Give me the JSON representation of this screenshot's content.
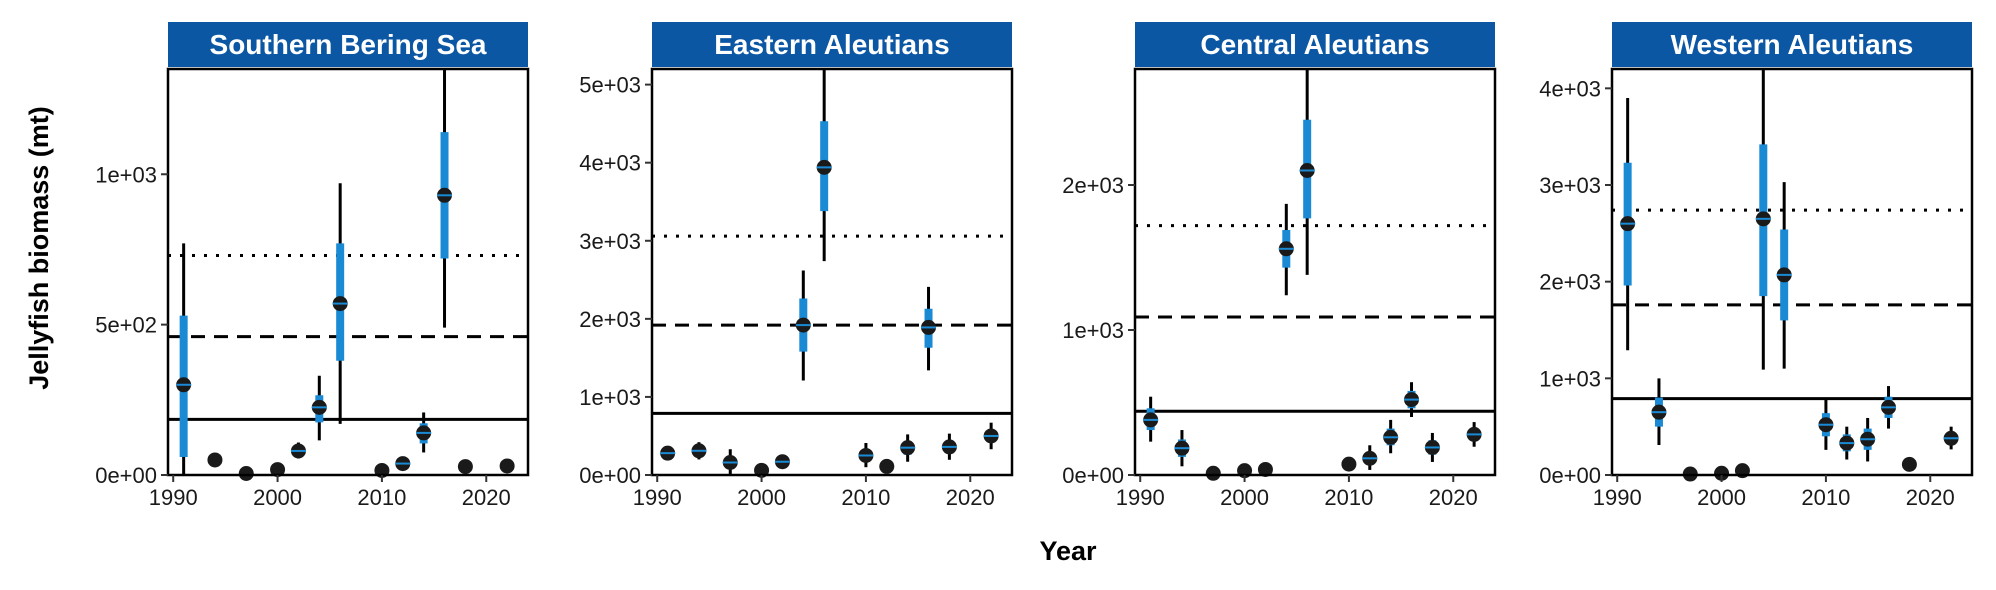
{
  "chart_data": {
    "type": "scatter",
    "ylabel": "Jellyfish biomass (mt)",
    "xlabel": "Year",
    "x_ticks": [
      "1990",
      "2000",
      "2010",
      "2020"
    ],
    "legend": "none",
    "strip_color": "#0b57a4",
    "ci_inner_color": "#1a8ad4",
    "panels": [
      {
        "title": "Southern Bering Sea",
        "ylim": [
          0,
          1350
        ],
        "y_ticks": [
          0,
          500,
          1000
        ],
        "y_tick_labels": [
          "0e+00",
          "5e+02",
          "1e+03"
        ],
        "hlines": {
          "solid": 185,
          "dashed": 460,
          "dotted": 730
        },
        "points": [
          {
            "year": 1991,
            "value": 300,
            "lo80": 60,
            "hi80": 530,
            "lo95": 0,
            "hi95": 770
          },
          {
            "year": 1994,
            "value": 50
          },
          {
            "year": 1997,
            "value": 5
          },
          {
            "year": 2000,
            "value": 18
          },
          {
            "year": 2002,
            "value": 80,
            "lo80": 65,
            "hi80": 95,
            "lo95": 55,
            "hi95": 108
          },
          {
            "year": 2004,
            "value": 225,
            "lo80": 175,
            "hi80": 265,
            "lo95": 115,
            "hi95": 330
          },
          {
            "year": 2006,
            "value": 570,
            "lo80": 380,
            "hi80": 770,
            "lo95": 170,
            "hi95": 970
          },
          {
            "year": 2010,
            "value": 15
          },
          {
            "year": 2012,
            "value": 38,
            "lo80": 28,
            "hi80": 48,
            "lo95": 18,
            "hi95": 60
          },
          {
            "year": 2014,
            "value": 140,
            "lo80": 105,
            "hi80": 172,
            "lo95": 75,
            "hi95": 208
          },
          {
            "year": 2016,
            "value": 930,
            "lo80": 720,
            "hi80": 1140,
            "lo95": 490,
            "hi95": 1350
          },
          {
            "year": 2018,
            "value": 28
          },
          {
            "year": 2022,
            "value": 30
          }
        ]
      },
      {
        "title": "Eastern Aleutians",
        "ylim": [
          0,
          5200
        ],
        "y_ticks": [
          0,
          1000,
          2000,
          3000,
          4000,
          5000
        ],
        "y_tick_labels": [
          "0e+00",
          "1e+03",
          "2e+03",
          "3e+03",
          "4e+03",
          "5e+03"
        ],
        "hlines": {
          "solid": 790,
          "dashed": 1920,
          "dotted": 3060
        },
        "points": [
          {
            "year": 1991,
            "value": 280,
            "lo80": 240,
            "hi80": 320,
            "lo95": 200,
            "hi95": 360
          },
          {
            "year": 1994,
            "value": 310,
            "lo80": 255,
            "hi80": 365,
            "lo95": 200,
            "hi95": 420
          },
          {
            "year": 1997,
            "value": 160,
            "lo80": 90,
            "hi80": 240,
            "lo95": 10,
            "hi95": 330
          },
          {
            "year": 2000,
            "value": 60
          },
          {
            "year": 2002,
            "value": 170,
            "lo80": 145,
            "hi80": 195,
            "lo95": 125,
            "hi95": 215
          },
          {
            "year": 2004,
            "value": 1920,
            "lo80": 1580,
            "hi80": 2260,
            "lo95": 1210,
            "hi95": 2620
          },
          {
            "year": 2006,
            "value": 3940,
            "lo80": 3380,
            "hi80": 4530,
            "lo95": 2740,
            "hi95": 5200
          },
          {
            "year": 2010,
            "value": 250,
            "lo80": 175,
            "hi80": 330,
            "lo95": 100,
            "hi95": 410
          },
          {
            "year": 2012,
            "value": 110
          },
          {
            "year": 2014,
            "value": 350,
            "lo80": 260,
            "hi80": 430,
            "lo95": 170,
            "hi95": 520
          },
          {
            "year": 2016,
            "value": 1890,
            "lo80": 1630,
            "hi80": 2130,
            "lo95": 1340,
            "hi95": 2410
          },
          {
            "year": 2018,
            "value": 360,
            "lo80": 280,
            "hi80": 440,
            "lo95": 195,
            "hi95": 530
          },
          {
            "year": 2022,
            "value": 500,
            "lo80": 420,
            "hi80": 580,
            "lo95": 330,
            "hi95": 670
          }
        ]
      },
      {
        "title": "Central Aleutians",
        "ylim": [
          0,
          2800
        ],
        "y_ticks": [
          0,
          1000,
          2000
        ],
        "y_tick_labels": [
          "0e+00",
          "1e+03",
          "2e+03"
        ],
        "hlines": {
          "solid": 440,
          "dashed": 1090,
          "dotted": 1720
        },
        "points": [
          {
            "year": 1991,
            "value": 380,
            "lo80": 310,
            "hi80": 460,
            "lo95": 230,
            "hi95": 540
          },
          {
            "year": 1994,
            "value": 185,
            "lo80": 125,
            "hi80": 245,
            "lo95": 60,
            "hi95": 310
          },
          {
            "year": 1997,
            "value": 12
          },
          {
            "year": 2000,
            "value": 30
          },
          {
            "year": 2002,
            "value": 38
          },
          {
            "year": 2004,
            "value": 1560,
            "lo80": 1430,
            "hi80": 1690,
            "lo95": 1240,
            "hi95": 1870
          },
          {
            "year": 2006,
            "value": 2100,
            "lo80": 1770,
            "hi80": 2450,
            "lo95": 1380,
            "hi95": 2800
          },
          {
            "year": 2010,
            "value": 75
          },
          {
            "year": 2012,
            "value": 115,
            "lo80": 75,
            "hi80": 160,
            "lo95": 35,
            "hi95": 205
          },
          {
            "year": 2014,
            "value": 260,
            "lo80": 205,
            "hi80": 320,
            "lo95": 150,
            "hi95": 380
          },
          {
            "year": 2016,
            "value": 520,
            "lo80": 460,
            "hi80": 580,
            "lo95": 400,
            "hi95": 640
          },
          {
            "year": 2018,
            "value": 190,
            "lo80": 140,
            "hi80": 240,
            "lo95": 90,
            "hi95": 290
          },
          {
            "year": 2022,
            "value": 280,
            "lo80": 240,
            "hi80": 320,
            "lo95": 195,
            "hi95": 365
          }
        ]
      },
      {
        "title": "Western Aleutians",
        "ylim": [
          0,
          4200
        ],
        "y_ticks": [
          0,
          1000,
          2000,
          3000,
          4000
        ],
        "y_tick_labels": [
          "0e+00",
          "1e+03",
          "2e+03",
          "3e+03",
          "4e+03"
        ],
        "hlines": {
          "solid": 790,
          "dashed": 1760,
          "dotted": 2740
        },
        "points": [
          {
            "year": 1991,
            "value": 2600,
            "lo80": 1960,
            "hi80": 3230,
            "lo95": 1290,
            "hi95": 3900
          },
          {
            "year": 1994,
            "value": 650,
            "lo80": 500,
            "hi80": 800,
            "lo95": 310,
            "hi95": 1000
          },
          {
            "year": 1997,
            "value": 10
          },
          {
            "year": 2000,
            "value": 18
          },
          {
            "year": 2002,
            "value": 45
          },
          {
            "year": 2004,
            "value": 2650,
            "lo80": 1850,
            "hi80": 3420,
            "lo95": 1090,
            "hi95": 4200
          },
          {
            "year": 2006,
            "value": 2070,
            "lo80": 1600,
            "hi80": 2540,
            "lo95": 1100,
            "hi95": 3030
          },
          {
            "year": 2010,
            "value": 520,
            "lo80": 400,
            "hi80": 640,
            "lo95": 260,
            "hi95": 790
          },
          {
            "year": 2012,
            "value": 330,
            "lo80": 245,
            "hi80": 420,
            "lo95": 160,
            "hi95": 500
          },
          {
            "year": 2014,
            "value": 370,
            "lo80": 260,
            "hi80": 480,
            "lo95": 140,
            "hi95": 590
          },
          {
            "year": 2016,
            "value": 700,
            "lo80": 590,
            "hi80": 810,
            "lo95": 480,
            "hi95": 920
          },
          {
            "year": 2018,
            "value": 110
          },
          {
            "year": 2022,
            "value": 380,
            "lo80": 320,
            "hi80": 440,
            "lo95": 265,
            "hi95": 500
          }
        ]
      }
    ]
  }
}
